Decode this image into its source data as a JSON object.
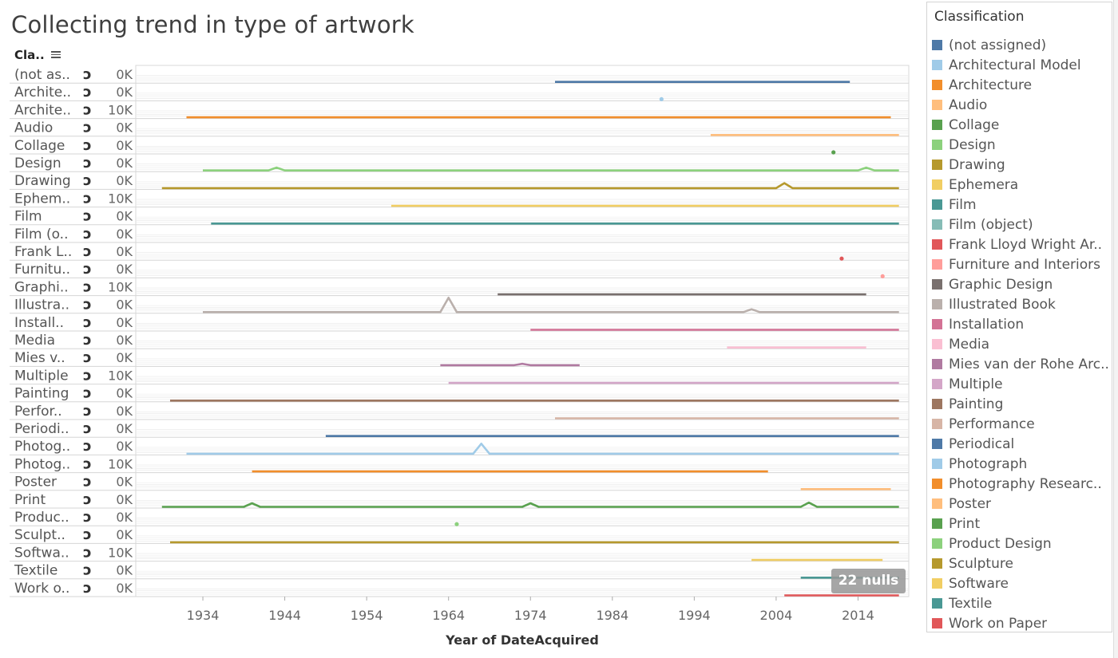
{
  "title": "Collecting trend in type of artwork",
  "row_header": "Cla..",
  "nulls_badge": "22 nulls",
  "legend": {
    "title": "Classification",
    "items": [
      {
        "label": "(not assigned)",
        "color": "#4e79a7"
      },
      {
        "label": "Architectural Model",
        "color": "#a0cbe8"
      },
      {
        "label": "Architecture",
        "color": "#f28e2b"
      },
      {
        "label": "Audio",
        "color": "#ffbe7d"
      },
      {
        "label": "Collage",
        "color": "#59a14f"
      },
      {
        "label": "Design",
        "color": "#8cd17d"
      },
      {
        "label": "Drawing",
        "color": "#b6992d"
      },
      {
        "label": "Ephemera",
        "color": "#f1ce63"
      },
      {
        "label": "Film",
        "color": "#499894"
      },
      {
        "label": "Film (object)",
        "color": "#86bcb6"
      },
      {
        "label": "Frank Lloyd Wright Ar..",
        "color": "#e15759"
      },
      {
        "label": "Furniture and Interiors",
        "color": "#ff9d9a"
      },
      {
        "label": "Graphic Design",
        "color": "#79706e"
      },
      {
        "label": "Illustrated Book",
        "color": "#bab0ac"
      },
      {
        "label": "Installation",
        "color": "#d37295"
      },
      {
        "label": "Media",
        "color": "#fabfd2"
      },
      {
        "label": "Mies van der Rohe Arc..",
        "color": "#b07aa1"
      },
      {
        "label": "Multiple",
        "color": "#d4a6c8"
      },
      {
        "label": "Painting",
        "color": "#9d7660"
      },
      {
        "label": "Performance",
        "color": "#d7b5a6"
      },
      {
        "label": "Periodical",
        "color": "#4e79a7"
      },
      {
        "label": "Photograph",
        "color": "#a0cbe8"
      },
      {
        "label": "Photography Researc..",
        "color": "#f28e2b"
      },
      {
        "label": "Poster",
        "color": "#ffbe7d"
      },
      {
        "label": "Print",
        "color": "#59a14f"
      },
      {
        "label": "Product Design",
        "color": "#8cd17d"
      },
      {
        "label": "Sculpture",
        "color": "#b6992d"
      },
      {
        "label": "Software",
        "color": "#f1ce63"
      },
      {
        "label": "Textile",
        "color": "#499894"
      },
      {
        "label": "Work on Paper",
        "color": "#e15759"
      }
    ]
  },
  "chart_data": {
    "type": "line",
    "title": "Collecting trend in type of artwork",
    "xlabel": "Year of DateAcquired",
    "x_ticks": [
      1934,
      1944,
      1954,
      1964,
      1974,
      1984,
      1994,
      2004,
      2014
    ],
    "xlim": [
      1926,
      2020
    ],
    "axis_icon": "ↄ",
    "rows": [
      {
        "label": "(not as..",
        "axis": "0K",
        "color": "#4e79a7",
        "start": 1977,
        "end": 2013,
        "spikes": []
      },
      {
        "label": "Archite..",
        "axis": "0K",
        "color": "#a0cbe8",
        "point": 1990
      },
      {
        "label": "Archite..",
        "axis": "10K",
        "color": "#f28e2b",
        "start": 1932,
        "end": 2018,
        "spikes": []
      },
      {
        "label": "Audio",
        "axis": "0K",
        "color": "#ffbe7d",
        "start": 1996,
        "end": 2019,
        "spikes": []
      },
      {
        "label": "Collage",
        "axis": "0K",
        "color": "#59a14f",
        "point": 2011
      },
      {
        "label": "Design",
        "axis": "0K",
        "color": "#8cd17d",
        "start": 1934,
        "end": 2019,
        "spikes": [
          [
            1943,
            0.2
          ],
          [
            2015,
            0.2
          ]
        ]
      },
      {
        "label": "Drawing",
        "axis": "0K",
        "color": "#b6992d",
        "start": 1929,
        "end": 2019,
        "spikes": [
          [
            2005,
            0.35
          ]
        ]
      },
      {
        "label": "Ephem..",
        "axis": "10K",
        "color": "#f1ce63",
        "start": 1957,
        "end": 2019,
        "spikes": []
      },
      {
        "label": "Film",
        "axis": "0K",
        "color": "#499894",
        "start": 1935,
        "end": 2019,
        "spikes": []
      },
      {
        "label": "Film (o..",
        "axis": "0K",
        "color": "#86bcb6"
      },
      {
        "label": "Frank L..",
        "axis": "0K",
        "color": "#e15759",
        "point": 2012
      },
      {
        "label": "Furnitu..",
        "axis": "0K",
        "color": "#ff9d9a",
        "point": 2017
      },
      {
        "label": "Graphi..",
        "axis": "10K",
        "color": "#79706e",
        "start": 1970,
        "end": 2015,
        "spikes": []
      },
      {
        "label": "Illustra..",
        "axis": "0K",
        "color": "#bab0ac",
        "start": 1934,
        "end": 2019,
        "spikes": [
          [
            1964,
            1.0
          ],
          [
            2001,
            0.2
          ]
        ]
      },
      {
        "label": "Install..",
        "axis": "0K",
        "color": "#d37295",
        "start": 1974,
        "end": 2019,
        "spikes": []
      },
      {
        "label": "Media",
        "axis": "0K",
        "color": "#fabfd2",
        "start": 1998,
        "end": 2015,
        "spikes": []
      },
      {
        "label": "Mies v..",
        "axis": "0K",
        "color": "#b07aa1",
        "start": 1963,
        "end": 1980,
        "spikes": [
          [
            1973,
            0.1
          ]
        ]
      },
      {
        "label": "Multiple",
        "axis": "10K",
        "color": "#d4a6c8",
        "start": 1964,
        "end": 2019,
        "spikes": []
      },
      {
        "label": "Painting",
        "axis": "0K",
        "color": "#9d7660",
        "start": 1930,
        "end": 2019,
        "spikes": []
      },
      {
        "label": "Perfor..",
        "axis": "0K",
        "color": "#d7b5a6",
        "start": 1977,
        "end": 2019,
        "spikes": []
      },
      {
        "label": "Periodi..",
        "axis": "0K",
        "color": "#4e79a7",
        "start": 1949,
        "end": 2019,
        "spikes": []
      },
      {
        "label": "Photog..",
        "axis": "0K",
        "color": "#a0cbe8",
        "start": 1932,
        "end": 2019,
        "spikes": [
          [
            1968,
            0.7
          ]
        ]
      },
      {
        "label": "Photog..",
        "axis": "10K",
        "color": "#f28e2b",
        "start": 1940,
        "end": 2003,
        "spikes": []
      },
      {
        "label": "Poster",
        "axis": "0K",
        "color": "#ffbe7d",
        "start": 2007,
        "end": 2018,
        "spikes": []
      },
      {
        "label": "Print",
        "axis": "0K",
        "color": "#59a14f",
        "start": 1929,
        "end": 2019,
        "spikes": [
          [
            1940,
            0.25
          ],
          [
            1974,
            0.25
          ],
          [
            2008,
            0.3
          ]
        ]
      },
      {
        "label": "Produc..",
        "axis": "0K",
        "color": "#8cd17d",
        "point": 1965
      },
      {
        "label": "Sculpt..",
        "axis": "0K",
        "color": "#b6992d",
        "start": 1930,
        "end": 2019,
        "spikes": []
      },
      {
        "label": "Softwa..",
        "axis": "10K",
        "color": "#f1ce63",
        "start": 2001,
        "end": 2017,
        "spikes": []
      },
      {
        "label": "Textile",
        "axis": "0K",
        "color": "#499894",
        "start": 2007,
        "end": 2019,
        "spikes": []
      },
      {
        "label": "Work o..",
        "axis": "0K",
        "color": "#e15759",
        "start": 2005,
        "end": 2019,
        "spikes": []
      }
    ]
  }
}
